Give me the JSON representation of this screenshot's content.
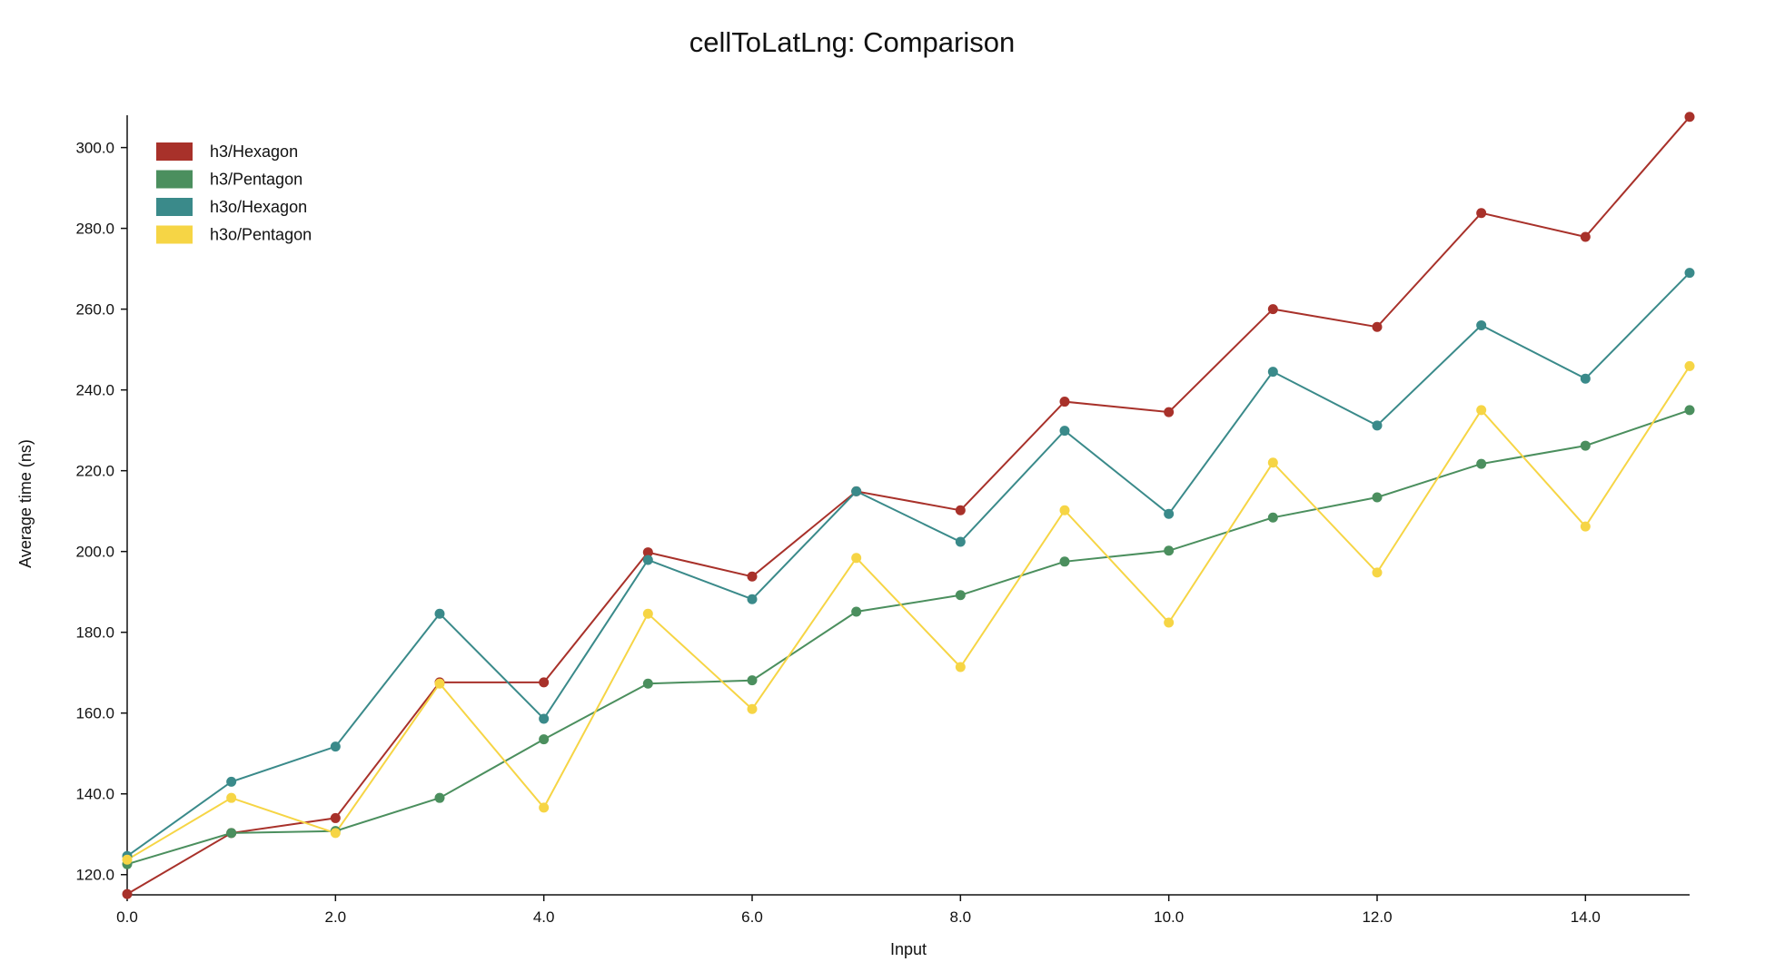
{
  "chart_data": {
    "type": "line",
    "title": "cellToLatLng: Comparison",
    "xlabel": "Input",
    "ylabel": "Average time (ns)",
    "xlim": [
      0,
      15
    ],
    "ylim": [
      115,
      308
    ],
    "x_ticks": [
      0,
      2,
      4,
      6,
      8,
      10,
      12,
      14
    ],
    "x_tick_labels": [
      "0.0",
      "2.0",
      "4.0",
      "6.0",
      "8.0",
      "10.0",
      "12.0",
      "14.0"
    ],
    "y_ticks": [
      120,
      140,
      160,
      180,
      200,
      220,
      240,
      260,
      280,
      300
    ],
    "y_tick_labels": [
      "120.0",
      "140.0",
      "160.0",
      "180.0",
      "200.0",
      "220.0",
      "240.0",
      "260.0",
      "280.0",
      "300.0"
    ],
    "grid": false,
    "legend_position": "top-left",
    "x": [
      0,
      1,
      2,
      3,
      4,
      5,
      6,
      7,
      8,
      9,
      10,
      11,
      12,
      13,
      14,
      15
    ],
    "series": [
      {
        "name": "h3/Hexagon",
        "color": "#a8312a",
        "values": [
          115.2,
          130.3,
          134.0,
          167.6,
          167.6,
          199.8,
          193.8,
          214.9,
          210.2,
          237.1,
          234.5,
          260.0,
          255.6,
          283.8,
          277.9,
          307.6
        ]
      },
      {
        "name": "h3/Pentagon",
        "color": "#4b8f5e",
        "values": [
          122.6,
          130.3,
          130.8,
          139.0,
          153.5,
          167.3,
          168.1,
          185.1,
          189.2,
          197.5,
          200.2,
          208.4,
          213.4,
          221.7,
          226.2,
          235.0
        ]
      },
      {
        "name": "h3o/Hexagon",
        "color": "#3a8a8a",
        "values": [
          124.6,
          143.0,
          151.7,
          184.6,
          158.6,
          197.9,
          188.2,
          214.9,
          202.4,
          229.9,
          209.3,
          244.5,
          231.2,
          256.0,
          242.8,
          269.0
        ]
      },
      {
        "name": "h3o/Pentagon",
        "color": "#f6d545",
        "values": [
          123.7,
          139.0,
          130.3,
          167.3,
          136.6,
          184.6,
          161.0,
          198.4,
          171.4,
          210.2,
          182.4,
          222.0,
          194.8,
          235.0,
          206.2,
          245.9
        ]
      }
    ]
  }
}
